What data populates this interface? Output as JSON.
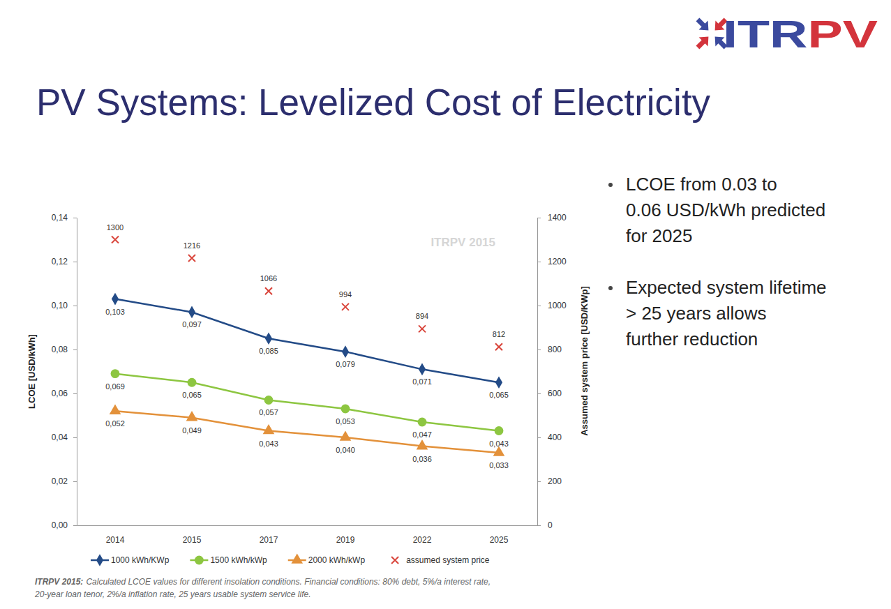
{
  "header": {
    "logo": [
      "ITR",
      "PV"
    ],
    "title": "PV Systems: Levelized Cost of Electricity"
  },
  "bullets": [
    [
      "LCOE from 0.03 to",
      "0.06 USD/kWh predicted",
      "for 2025"
    ],
    [
      "Expected system lifetime",
      "> 25 years allows",
      "further reduction"
    ]
  ],
  "chart_data": {
    "type": "line",
    "watermark": "ITRPV 2015",
    "y_label": "LCOE [USD/kWh]",
    "y2_label": "Assumed system price [USD/KWp]",
    "categories": [
      "2014",
      "2015",
      "2017",
      "2019",
      "2022",
      "2025"
    ],
    "ylim": [
      0,
      0.14
    ],
    "yticks": [
      {
        "value": 0,
        "label": "0,00"
      },
      {
        "value": 0.02,
        "label": "0,02"
      },
      {
        "value": 0.04,
        "label": "0,04"
      },
      {
        "value": 0.06,
        "label": "0,06"
      },
      {
        "value": 0.08,
        "label": "0,08"
      },
      {
        "value": 0.1,
        "label": "0,10"
      },
      {
        "value": 0.12,
        "label": "0,12"
      },
      {
        "value": 0.14,
        "label": "0,14"
      }
    ],
    "y2lim": [
      0,
      1400
    ],
    "y2ticks": [
      0,
      200,
      400,
      600,
      800,
      1000,
      1200,
      1400
    ],
    "grid": false,
    "legend": "bottom",
    "data_labels": true,
    "series": [
      {
        "name": "1000 kWh/KWp",
        "color": "#234b87",
        "marker": "diamond",
        "values": [
          0.103,
          0.097,
          0.085,
          0.079,
          0.071,
          0.065
        ],
        "value_labels": [
          "0,103",
          "0,097",
          "0,085",
          "0,079",
          "0,071",
          "0,065"
        ]
      },
      {
        "name": "1500 kWh/kWp",
        "color": "#8dc641",
        "marker": "circle",
        "values": [
          0.069,
          0.065,
          0.057,
          0.053,
          0.047,
          0.043
        ],
        "value_labels": [
          "0,069",
          "0,065",
          "0,057",
          "0,053",
          "0,047",
          "0,043"
        ]
      },
      {
        "name": "2000 kWh/kWp",
        "color": "#e3913a",
        "marker": "triangle",
        "values": [
          0.052,
          0.049,
          0.043,
          0.04,
          0.036,
          0.033
        ],
        "value_labels": [
          "0,052",
          "0,049",
          "0,043",
          "0,040",
          "0,036",
          "0,033"
        ]
      },
      {
        "name": "assumed system price",
        "type": "scatter",
        "axis": "y2",
        "color": "#d9453b",
        "marker": "x",
        "values": [
          1300,
          1216,
          1066,
          994,
          894,
          812
        ]
      }
    ],
    "caption": {
      "label": "ITRPV 2015:",
      "lines": [
        "Calculated LCOE values for different insolation conditions. Financial conditions: 80% debt, 5%/a interest rate,",
        "20-year loan tenor, 2%/a inflation rate, 25 years usable system service life."
      ]
    }
  }
}
